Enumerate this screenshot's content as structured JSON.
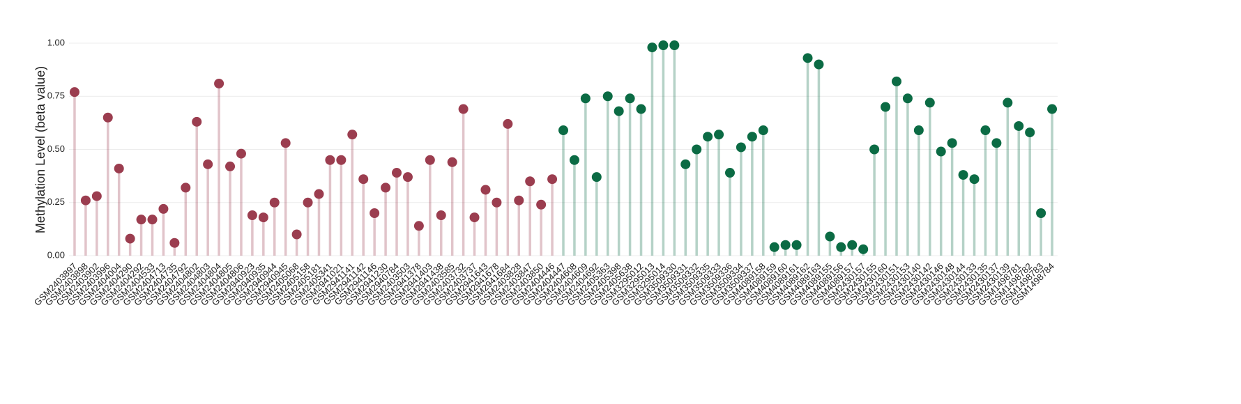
{
  "chart_data": {
    "type": "lollipop",
    "y_label": "Methylation Level (beta value)",
    "categories": [
      "GSM2403897",
      "GSM2403898",
      "GSM2403902",
      "GSM2403996",
      "GSM2404004",
      "GSM2404290",
      "GSM2404292",
      "GSM2404533",
      "GSM2404713",
      "GSM2404735",
      "GSM2404792",
      "GSM2404802",
      "GSM2404803",
      "GSM2404804",
      "GSM2404805",
      "GSM2404806",
      "GSM2940923",
      "GSM2940935",
      "GSM2940944",
      "GSM2940945",
      "GSM2405068",
      "GSM2405158",
      "GSM2405181",
      "GSM2405341",
      "GSM2941021",
      "GSM2941141",
      "GSM2941142",
      "GSM2941146",
      "GSM2941230",
      "GSM2940784",
      "GSM2403503",
      "GSM2941378",
      "GSM2941403",
      "GSM2941438",
      "GSM2403585",
      "GSM2403732",
      "GSM2403737",
      "GSM2941643",
      "GSM2941678",
      "GSM2941684",
      "GSM2403828",
      "GSM2403847",
      "GSM2403850",
      "GSM2404446",
      "GSM2404447",
      "GSM2404608",
      "GSM2404609",
      "GSM2404692",
      "GSM2405363",
      "GSM2405398",
      "GSM2405638",
      "GSM3295012",
      "GSM3295013",
      "GSM3295014",
      "GSM3509330",
      "GSM3509331",
      "GSM3509332",
      "GSM3509335",
      "GSM3509333",
      "GSM3509336",
      "GSM3509334",
      "GSM3509337",
      "GSM4089158",
      "GSM4089159",
      "GSM4089160",
      "GSM4089161",
      "GSM4089162",
      "GSM4089163",
      "GSM4089155",
      "GSM4089156",
      "GSM4089157",
      "GSM2430157",
      "GSM2430155",
      "GSM2430160",
      "GSM2430151",
      "GSM2430153",
      "GSM2430140",
      "GSM2430142",
      "GSM2430146",
      "GSM2430148",
      "GSM2430144",
      "GSM2430133",
      "GSM2430135",
      "GSM2430137",
      "GSM2430139",
      "GSM1498781",
      "GSM1498782",
      "GSM1498783",
      "GSM1498784"
    ],
    "series": [
      {
        "color": "#9b3d4f",
        "values": [
          0.77,
          0.26,
          0.28,
          0.65,
          0.41,
          0.08,
          0.17,
          0.17,
          0.22,
          0.06,
          0.32,
          0.63,
          0.43,
          0.81,
          0.42,
          0.48,
          0.19,
          0.18,
          0.25,
          0.53,
          0.1,
          0.25,
          0.29,
          0.45,
          0.45,
          0.57,
          0.36,
          0.2,
          0.32,
          0.39,
          0.37,
          0.14,
          0.45,
          0.19,
          0.44,
          0.69,
          0.18,
          0.31,
          0.25,
          0.62,
          0.26,
          0.35,
          0.24,
          0.36,
          null,
          null,
          null,
          null,
          null,
          null,
          null,
          null,
          null,
          null,
          null,
          null,
          null,
          null,
          null,
          null,
          null,
          null,
          null,
          null,
          null,
          null,
          null,
          null,
          null,
          null,
          null,
          null,
          null,
          null,
          null,
          null,
          null,
          null,
          null,
          null,
          null,
          null,
          null,
          null,
          null,
          null,
          null,
          null,
          null
        ]
      },
      {
        "color": "#0b6b44",
        "values": [
          null,
          null,
          null,
          null,
          null,
          null,
          null,
          null,
          null,
          null,
          null,
          null,
          null,
          null,
          null,
          null,
          null,
          null,
          null,
          null,
          null,
          null,
          null,
          null,
          null,
          null,
          null,
          null,
          null,
          null,
          null,
          null,
          null,
          null,
          null,
          null,
          null,
          null,
          null,
          null,
          null,
          null,
          null,
          null,
          0.59,
          0.45,
          0.74,
          0.37,
          0.75,
          0.68,
          0.74,
          0.69,
          0.98,
          0.99,
          0.99,
          0.43,
          0.5,
          0.56,
          0.57,
          0.39,
          0.51,
          0.56,
          0.59,
          0.04,
          0.05,
          0.05,
          0.93,
          0.9,
          0.09,
          0.04,
          0.05,
          0.03,
          0.5,
          0.7,
          0.82,
          0.74,
          0.59,
          0.72,
          0.49,
          0.53,
          0.38,
          0.36,
          0.59,
          0.53,
          0.72,
          0.61,
          0.58,
          0.2,
          0.69
        ]
      }
    ],
    "ylim": [
      0,
      1
    ],
    "yticks": [
      {
        "value": 0,
        "label": "0.00"
      },
      {
        "value": 0.25,
        "label": "0.25"
      },
      {
        "value": 0.5,
        "label": "0.50"
      },
      {
        "value": 0.75,
        "label": "0.75"
      },
      {
        "value": 1,
        "label": "1.00"
      }
    ],
    "grid": true
  }
}
